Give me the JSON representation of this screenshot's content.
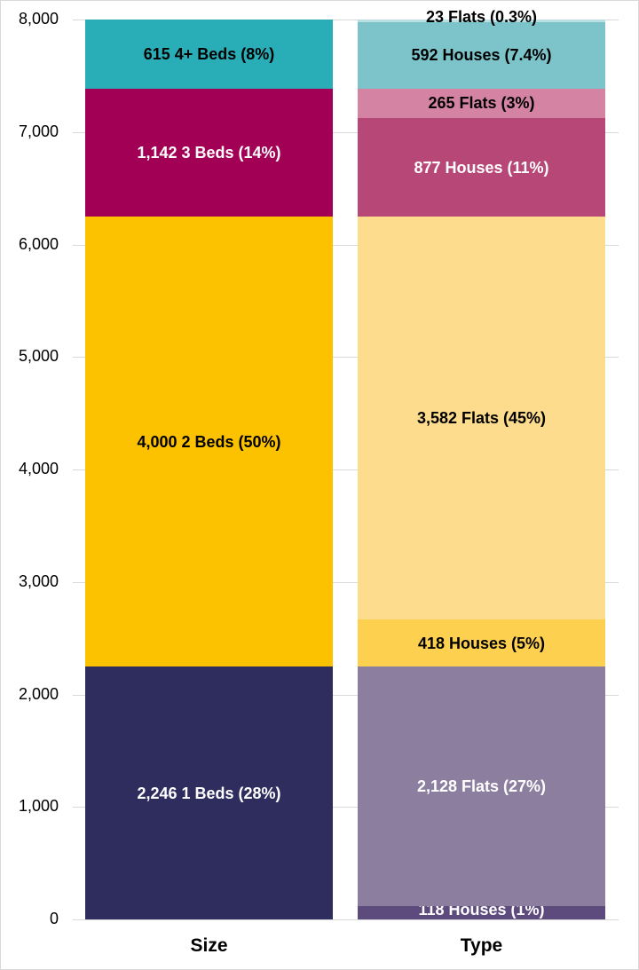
{
  "chart_data": {
    "type": "bar",
    "stacked": true,
    "title": "",
    "xlabel": "",
    "ylabel": "",
    "ylim": [
      0,
      8000
    ],
    "yticks": [
      "0",
      "1,000",
      "2,000",
      "3,000",
      "4,000",
      "5,000",
      "6,000",
      "7,000",
      "8,000"
    ],
    "grid": true,
    "legend": "none",
    "categories": [
      "Size",
      "Type"
    ],
    "bars": [
      {
        "category": "Size",
        "segments": [
          {
            "label": "2,246 1 Beds (28%)",
            "value": 2246,
            "color": "#2e2d5e",
            "text_color": "#ffffff"
          },
          {
            "label": "4,000 2 Beds (50%)",
            "value": 4000,
            "color": "#fcc200",
            "text_color": "#000000"
          },
          {
            "label": "1,142 3 Beds (14%)",
            "value": 1142,
            "color": "#a10055",
            "text_color": "#ffffff"
          },
          {
            "label": "615 4+ Beds (8%)",
            "value": 615,
            "color": "#29aeb8",
            "text_color": "#000000"
          }
        ]
      },
      {
        "category": "Type",
        "segments": [
          {
            "label": "118 Houses (1%)",
            "value": 118,
            "color": "#5d4b7e",
            "text_color": "#ffffff"
          },
          {
            "label": "2,128 Flats (27%)",
            "value": 2128,
            "color": "#8b7e9e",
            "text_color": "#ffffff"
          },
          {
            "label": "418 Houses (5%)",
            "value": 418,
            "color": "#fdd04f",
            "text_color": "#000000"
          },
          {
            "label": "3,582 Flats (45%)",
            "value": 3582,
            "color": "#fddd8d",
            "text_color": "#000000"
          },
          {
            "label": "877 Houses (11%)",
            "value": 877,
            "color": "#b74777",
            "text_color": "#ffffff"
          },
          {
            "label": "265 Flats (3%)",
            "value": 265,
            "color": "#d484a2",
            "text_color": "#000000"
          },
          {
            "label": "592 Houses (7.4%)",
            "value": 592,
            "color": "#7cc4ca",
            "text_color": "#000000"
          },
          {
            "label": "23 Flats (0.3%)",
            "value": 23,
            "color": "#b9dfe2",
            "text_color": "#000000"
          }
        ]
      }
    ]
  }
}
